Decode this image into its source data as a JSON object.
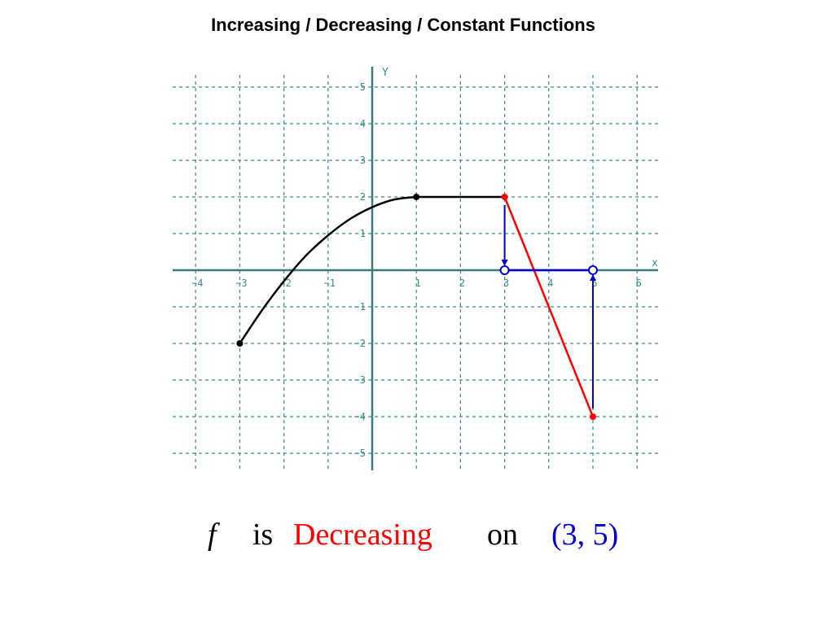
{
  "title": "Increasing / Decreasing / Constant Functions",
  "caption": {
    "function_symbol": "f",
    "is_text": "is",
    "trend_word": "Decreasing",
    "on_text": "on",
    "interval": "(3, 5)"
  },
  "colors": {
    "curve": "#000000",
    "highlight": "#ff0000",
    "interval": "#0000cc",
    "grid": "#3a8a8a",
    "axis": "#3a7a7a"
  },
  "chart_data": {
    "type": "line",
    "xlabel": "x",
    "ylabel": "y",
    "xlim": [
      -4,
      6
    ],
    "ylim": [
      -5,
      5
    ],
    "grid": true,
    "x_ticks": [
      -4,
      -3,
      -2,
      -1,
      1,
      2,
      3,
      4,
      5,
      6
    ],
    "y_ticks": [
      -5,
      -4,
      -3,
      -2,
      -1,
      1,
      2,
      3,
      4,
      5
    ],
    "series": [
      {
        "role": "increasing",
        "color": "#000000",
        "points": [
          [
            -3,
            -2
          ],
          [
            -2.5,
            -1.1
          ],
          [
            -2,
            -0.3
          ],
          [
            -1.5,
            0.4
          ],
          [
            -1,
            0.95
          ],
          [
            -0.5,
            1.4
          ],
          [
            0,
            1.72
          ],
          [
            0.5,
            1.93
          ],
          [
            1,
            2
          ]
        ]
      },
      {
        "role": "constant",
        "color": "#000000",
        "points": [
          [
            1,
            2
          ],
          [
            3,
            2
          ]
        ]
      },
      {
        "role": "decreasing",
        "color": "#ff0000",
        "points": [
          [
            3,
            2
          ],
          [
            5,
            -4
          ]
        ]
      }
    ],
    "filled_points": [
      {
        "x": -3,
        "y": -2,
        "color": "#000000"
      },
      {
        "x": 1,
        "y": 2,
        "color": "#000000"
      },
      {
        "x": 3,
        "y": 2,
        "color": "#ff0000"
      },
      {
        "x": 5,
        "y": -4,
        "color": "#ff0000"
      }
    ],
    "interval": {
      "from": 3,
      "to": 5,
      "color": "#0000cc",
      "open_endpoints": true,
      "arrows": [
        {
          "x": 3,
          "from_y": 2,
          "to_y": 0
        },
        {
          "x": 5,
          "from_y": -4,
          "to_y": 0
        }
      ]
    }
  }
}
